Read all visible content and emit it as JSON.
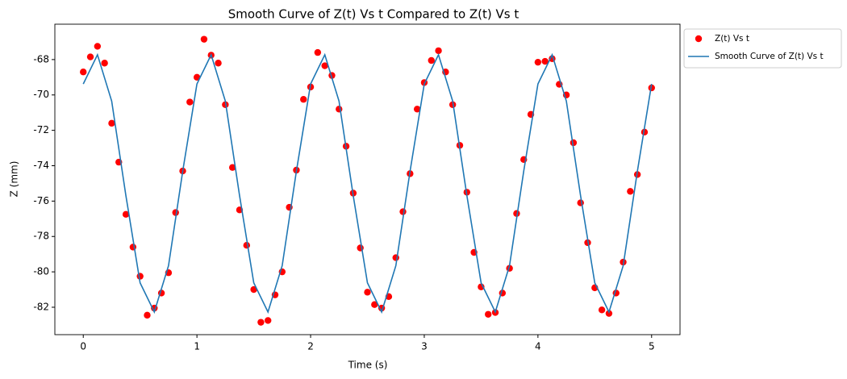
{
  "chart_data": {
    "type": "scatter-line",
    "title": "Smooth Curve of Z(t) Vs t Compared to Z(t) Vs t",
    "x_label": "Time (s)",
    "y_label": "Z (mm)",
    "xlim": [
      -0.25,
      5.25
    ],
    "xticks": [
      0,
      1,
      2,
      3,
      4,
      5
    ],
    "ylim": [
      -83.55,
      -66
    ],
    "yticks": [
      -82,
      -80,
      -78,
      -76,
      -74,
      -72,
      -70,
      -68
    ],
    "legend": "upper-right-outside",
    "series": [
      {
        "name": "Z(t) Vs t",
        "kind": "scatter",
        "color": "#ff0000",
        "x": [
          0,
          0.0625,
          0.125,
          0.1875,
          0.25,
          0.3125,
          0.375,
          0.4375,
          0.5,
          0.5625,
          0.625,
          0.6875,
          0.75,
          0.8125,
          0.875,
          0.9375,
          1,
          1.0625,
          1.125,
          1.1875,
          1.25,
          1.3125,
          1.375,
          1.4375,
          1.5,
          1.5625,
          1.625,
          1.6875,
          1.75,
          1.8125,
          1.875,
          1.9375,
          2,
          2.0625,
          2.125,
          2.1875,
          2.25,
          2.3125,
          2.375,
          2.4375,
          2.5,
          2.5625,
          2.625,
          2.6875,
          2.75,
          2.8125,
          2.875,
          2.9375,
          3,
          3.0625,
          3.125,
          3.1875,
          3.25,
          3.3125,
          3.375,
          3.4375,
          3.5,
          3.5625,
          3.625,
          3.6875,
          3.75,
          3.8125,
          3.875,
          3.9375,
          4,
          4.0625,
          4.125,
          4.1875,
          4.25,
          4.3125,
          4.375,
          4.4375,
          4.5,
          4.5625,
          4.625,
          4.6875,
          4.75,
          4.8125,
          4.875,
          4.9375,
          5
        ],
        "values": [
          -68.7,
          -67.85,
          -67.25,
          -68.2,
          -71.6,
          -73.8,
          -76.75,
          -78.6,
          -80.25,
          -82.45,
          -82.05,
          -81.2,
          -80.05,
          -76.65,
          -74.3,
          -70.4,
          -69.0,
          -66.85,
          -67.75,
          -68.2,
          -70.55,
          -74.1,
          -76.5,
          -78.5,
          -81.0,
          -82.85,
          -82.75,
          -81.3,
          -80.0,
          -76.35,
          -74.25,
          -70.25,
          -69.55,
          -67.6,
          -68.35,
          -68.9,
          -70.8,
          -72.9,
          -75.55,
          -78.65,
          -81.15,
          -81.85,
          -82.05,
          -81.4,
          -79.2,
          -76.6,
          -74.45,
          -70.8,
          -69.3,
          -68.05,
          -67.5,
          -68.7,
          -70.55,
          -72.85,
          -75.5,
          -78.9,
          -80.85,
          -82.4,
          -82.3,
          -81.2,
          -79.8,
          -76.7,
          -73.65,
          -71.1,
          -68.15,
          -68.1,
          -67.95,
          -69.4,
          -70.0,
          -72.7,
          -76.1,
          -78.35,
          -80.9,
          -82.15,
          -82.35,
          -81.2,
          -79.45,
          -75.45,
          -74.5,
          -72.1,
          -69.6
        ]
      },
      {
        "name": "Smooth Curve of Z(t) Vs t",
        "kind": "line",
        "color": "#1f77b4",
        "x": [
          0,
          0.125,
          0.25,
          0.375,
          0.5,
          0.625,
          0.75,
          0.875,
          1,
          1.125,
          1.25,
          1.375,
          1.5,
          1.625,
          1.75,
          1.875,
          2,
          2.125,
          2.25,
          2.375,
          2.5,
          2.625,
          2.75,
          2.875,
          3,
          3.125,
          3.25,
          3.375,
          3.5,
          3.625,
          3.75,
          3.875,
          4,
          4.125,
          4.25,
          4.375,
          4.5,
          4.625,
          4.75,
          4.875,
          5
        ],
        "values": [
          -69.38,
          -67.73,
          -70.35,
          -75.69,
          -80.62,
          -82.27,
          -79.65,
          -74.31,
          -69.38,
          -67.73,
          -70.35,
          -75.69,
          -80.62,
          -82.27,
          -79.65,
          -74.31,
          -69.38,
          -67.73,
          -70.35,
          -75.69,
          -80.62,
          -82.27,
          -79.65,
          -74.31,
          -69.38,
          -67.73,
          -70.35,
          -75.69,
          -80.62,
          -82.27,
          -79.65,
          -74.31,
          -69.38,
          -67.73,
          -70.35,
          -75.69,
          -80.62,
          -82.27,
          -79.65,
          -74.31,
          -69.38
        ]
      }
    ]
  }
}
